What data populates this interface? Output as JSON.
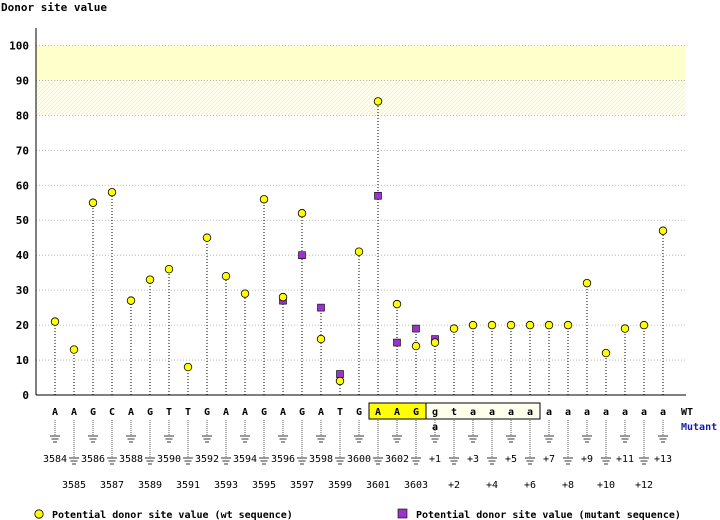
{
  "chart_data": {
    "type": "scatter",
    "ylabel": "Donor site value",
    "ylim": [
      0,
      105
    ],
    "yticks": [
      0,
      10,
      20,
      30,
      40,
      50,
      60,
      70,
      80,
      90,
      100
    ],
    "highlight_band": [
      80,
      100
    ],
    "positions": [
      "3584",
      "3585",
      "3586",
      "3587",
      "3588",
      "3589",
      "3590",
      "3591",
      "3592",
      "3593",
      "3594",
      "3595",
      "3596",
      "3597",
      "3598",
      "3599",
      "3600",
      "3601",
      "3602",
      "3603",
      "+1",
      "+2",
      "+3",
      "+4",
      "+5",
      "+6",
      "+7",
      "+8",
      "+9",
      "+10",
      "+11",
      "+12",
      "+13"
    ],
    "wt_bases": [
      "A",
      "A",
      "G",
      "C",
      "A",
      "G",
      "T",
      "T",
      "G",
      "A",
      "A",
      "G",
      "A",
      "G",
      "A",
      "T",
      "G",
      "A",
      "A",
      "G",
      "g",
      "t",
      "a",
      "a",
      "a",
      "a",
      "a",
      "a",
      "a",
      "a",
      "a",
      "a",
      "a"
    ],
    "mutant_bases": [
      "",
      "",
      "",
      "",
      "",
      "",
      "",
      "",
      "",
      "",
      "",
      "",
      "",
      "",
      "",
      "",
      "",
      "",
      "",
      "",
      "a",
      "",
      "",
      "",
      "",
      "",
      "",
      "",
      "",
      "",
      "",
      "",
      ""
    ],
    "highlighted_exon_indices": [
      17,
      18,
      19
    ],
    "boxed_intron_indices": [
      20,
      21,
      22,
      23,
      24,
      25
    ],
    "series": [
      {
        "name": "Potential donor site value (wt sequence)",
        "color": "#ffff00",
        "values": [
          21,
          13,
          55,
          58,
          27,
          33,
          36,
          8,
          45,
          34,
          29,
          56,
          28,
          52,
          16,
          4,
          41,
          84,
          26,
          14,
          15,
          19,
          20,
          20,
          20,
          20,
          20,
          20,
          32,
          12,
          19,
          20,
          47
        ]
      },
      {
        "name": "Potential donor site value (mutant sequence)",
        "color": "#9933cc",
        "values": [
          null,
          null,
          null,
          null,
          null,
          null,
          null,
          null,
          null,
          null,
          null,
          null,
          27,
          40,
          25,
          6,
          null,
          57,
          15,
          19,
          16,
          null,
          null,
          null,
          null,
          null,
          null,
          null,
          null,
          null,
          null,
          null,
          null
        ]
      }
    ],
    "row_labels": {
      "wt": "WT",
      "mutant": "Mutant"
    }
  },
  "legend": {
    "wt_label": "Potential donor site value (wt sequence)",
    "mutant_label": "Potential donor site value (mutant sequence)"
  }
}
